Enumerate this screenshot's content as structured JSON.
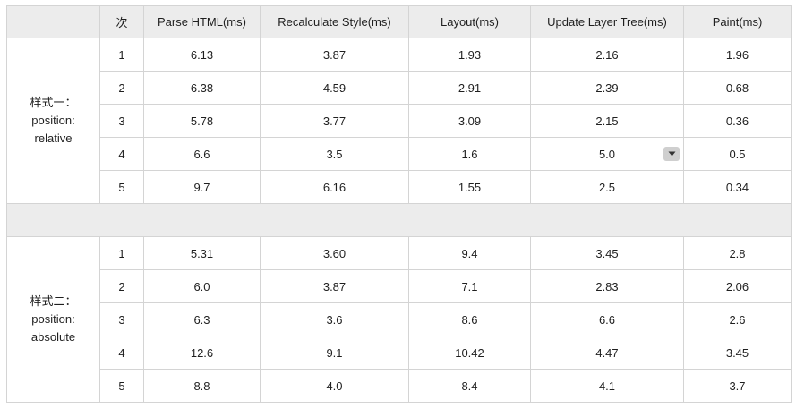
{
  "table": {
    "headers": [
      "",
      "次",
      "Parse HTML(ms)",
      "Recalculate Style(ms)",
      "Layout(ms)",
      "Update Layer Tree(ms)",
      "Paint(ms)"
    ],
    "groups": [
      {
        "label_lines": [
          "样式一：",
          "position:",
          "relative"
        ],
        "rows": [
          [
            "1",
            "6.13",
            "3.87",
            "1.93",
            "2.16",
            "1.96"
          ],
          [
            "2",
            "6.38",
            "4.59",
            "2.91",
            "2.39",
            "0.68"
          ],
          [
            "3",
            "5.78",
            "3.77",
            "3.09",
            "2.15",
            "0.36"
          ],
          [
            "4",
            "6.6",
            "3.5",
            "1.6",
            "5.0",
            "0.5"
          ],
          [
            "5",
            "9.7",
            "6.16",
            "1.55",
            "2.5",
            "0.34"
          ]
        ]
      },
      {
        "label_lines": [
          "样式二：",
          "position:",
          "absolute"
        ],
        "rows": [
          [
            "1",
            "5.31",
            "3.60",
            "9.4",
            "3.45",
            "2.8"
          ],
          [
            "2",
            "6.0",
            "3.87",
            "7.1",
            "2.83",
            "2.06"
          ],
          [
            "3",
            "6.3",
            "3.6",
            "8.6",
            "6.6",
            "2.6"
          ],
          [
            "4",
            "12.6",
            "9.1",
            "10.42",
            "4.47",
            "3.45"
          ],
          [
            "5",
            "8.8",
            "4.0",
            "8.4",
            "4.1",
            "3.7"
          ]
        ]
      }
    ],
    "dropdown": {
      "icon": "chevron-down-icon"
    }
  },
  "colors": {
    "header_bg": "#ececec",
    "border": "#d4d4d4",
    "separator_bg": "#ececec",
    "dropdown_bg": "#cfcfcf"
  }
}
